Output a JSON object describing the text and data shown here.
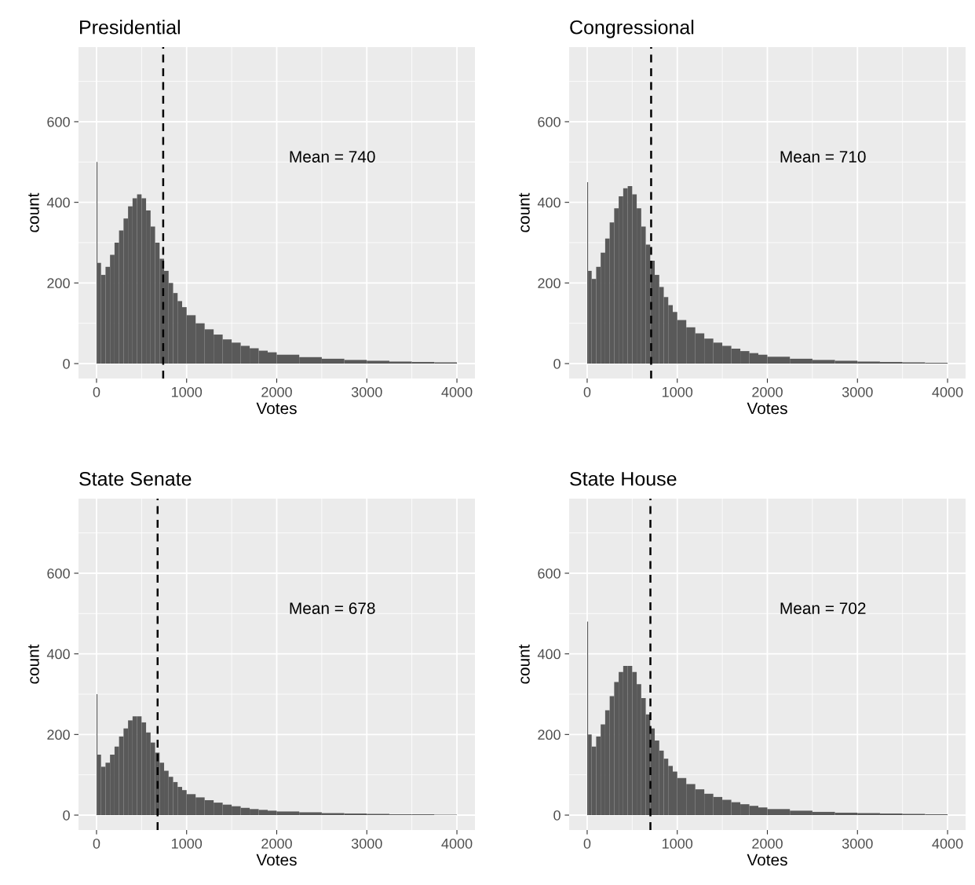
{
  "chart_data": [
    {
      "type": "histogram",
      "title": "Presidential",
      "xlabel": "Votes",
      "ylabel": "count",
      "color": "#595959",
      "grid": true,
      "xlim": [
        -200,
        4200
      ],
      "ylim": [
        -37,
        785
      ],
      "xticks": [
        0,
        1000,
        2000,
        3000,
        4000
      ],
      "yticks": [
        0,
        200,
        400,
        600
      ],
      "bins": [
        0,
        10,
        50,
        100,
        150,
        200,
        250,
        300,
        350,
        400,
        450,
        500,
        550,
        600,
        650,
        700,
        750,
        800,
        850,
        900,
        950,
        1000,
        1100,
        1200,
        1300,
        1400,
        1500,
        1600,
        1700,
        1800,
        1900,
        2000,
        2250,
        2500,
        2750,
        3000,
        3250,
        3500,
        3750,
        4000
      ],
      "values": [
        500,
        250,
        220,
        240,
        270,
        300,
        330,
        360,
        390,
        410,
        420,
        410,
        380,
        340,
        300,
        260,
        230,
        200,
        175,
        155,
        140,
        120,
        100,
        85,
        72,
        60,
        52,
        44,
        38,
        32,
        28,
        22,
        16,
        12,
        9,
        7,
        5,
        4,
        3
      ],
      "ref_lines": [
        {
          "axis": "x",
          "value": 740,
          "line_style": "dashed",
          "color": "#000000"
        }
      ],
      "annotations": [
        "Mean = 740"
      ]
    },
    {
      "type": "histogram",
      "title": "Congressional",
      "xlabel": "Votes",
      "ylabel": "count",
      "color": "#595959",
      "grid": true,
      "xlim": [
        -200,
        4200
      ],
      "ylim": [
        -37,
        785
      ],
      "xticks": [
        0,
        1000,
        2000,
        3000,
        4000
      ],
      "yticks": [
        0,
        200,
        400,
        600
      ],
      "bins": [
        0,
        10,
        50,
        100,
        150,
        200,
        250,
        300,
        350,
        400,
        450,
        500,
        550,
        600,
        650,
        700,
        750,
        800,
        850,
        900,
        950,
        1000,
        1100,
        1200,
        1300,
        1400,
        1500,
        1600,
        1700,
        1800,
        1900,
        2000,
        2250,
        2500,
        2750,
        3000,
        3250,
        3500,
        3750,
        4000
      ],
      "values": [
        450,
        230,
        210,
        240,
        275,
        310,
        350,
        385,
        415,
        435,
        440,
        420,
        385,
        340,
        295,
        255,
        220,
        190,
        165,
        145,
        128,
        108,
        90,
        75,
        62,
        52,
        44,
        37,
        31,
        26,
        22,
        17,
        12,
        9,
        7,
        5,
        4,
        3,
        2
      ],
      "ref_lines": [
        {
          "axis": "x",
          "value": 710,
          "line_style": "dashed",
          "color": "#000000"
        }
      ],
      "annotations": [
        "Mean = 710"
      ]
    },
    {
      "type": "histogram",
      "title": "State Senate",
      "xlabel": "Votes",
      "ylabel": "count",
      "color": "#595959",
      "grid": true,
      "xlim": [
        -200,
        4200
      ],
      "ylim": [
        -37,
        785
      ],
      "xticks": [
        0,
        1000,
        2000,
        3000,
        4000
      ],
      "yticks": [
        0,
        200,
        400,
        600
      ],
      "bins": [
        0,
        10,
        50,
        100,
        150,
        200,
        250,
        300,
        350,
        400,
        450,
        500,
        550,
        600,
        650,
        700,
        750,
        800,
        850,
        900,
        950,
        1000,
        1100,
        1200,
        1300,
        1400,
        1500,
        1600,
        1700,
        1800,
        1900,
        2000,
        2250,
        2500,
        2750,
        3000,
        3250,
        3500,
        3750,
        4000
      ],
      "values": [
        300,
        150,
        120,
        130,
        150,
        170,
        195,
        215,
        235,
        245,
        245,
        230,
        205,
        180,
        155,
        130,
        110,
        95,
        82,
        70,
        62,
        52,
        44,
        37,
        31,
        26,
        22,
        18,
        15,
        13,
        11,
        9,
        7,
        5,
        4,
        3,
        2,
        2,
        1
      ],
      "ref_lines": [
        {
          "axis": "x",
          "value": 678,
          "line_style": "dashed",
          "color": "#000000"
        }
      ],
      "annotations": [
        "Mean = 678"
      ]
    },
    {
      "type": "histogram",
      "title": "State House",
      "xlabel": "Votes",
      "ylabel": "count",
      "color": "#595959",
      "grid": true,
      "xlim": [
        -200,
        4200
      ],
      "ylim": [
        -37,
        785
      ],
      "xticks": [
        0,
        1000,
        2000,
        3000,
        4000
      ],
      "yticks": [
        0,
        200,
        400,
        600
      ],
      "bins": [
        0,
        10,
        50,
        100,
        150,
        200,
        250,
        300,
        350,
        400,
        450,
        500,
        550,
        600,
        650,
        700,
        750,
        800,
        850,
        900,
        950,
        1000,
        1100,
        1200,
        1300,
        1400,
        1500,
        1600,
        1700,
        1800,
        1900,
        2000,
        2250,
        2500,
        2750,
        3000,
        3250,
        3500,
        3750,
        4000
      ],
      "values": [
        480,
        200,
        170,
        195,
        225,
        260,
        295,
        330,
        355,
        370,
        370,
        355,
        325,
        290,
        250,
        215,
        185,
        160,
        140,
        122,
        108,
        92,
        77,
        64,
        53,
        45,
        38,
        32,
        27,
        23,
        19,
        15,
        11,
        8,
        6,
        5,
        4,
        3,
        2
      ],
      "ref_lines": [
        {
          "axis": "x",
          "value": 702,
          "line_style": "dashed",
          "color": "#000000"
        }
      ],
      "annotations": [
        "Mean = 702"
      ]
    }
  ]
}
